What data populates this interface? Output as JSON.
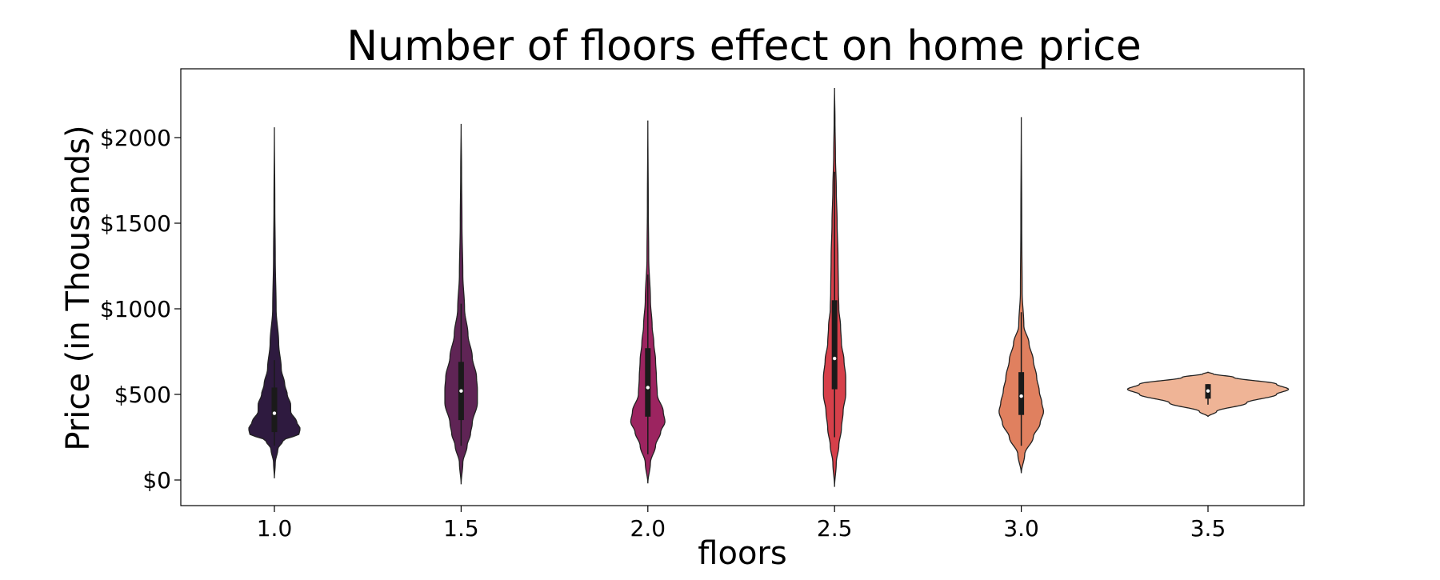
{
  "chart_data": {
    "type": "violin",
    "title": "Number of floors effect on home price",
    "xlabel": "floors",
    "ylabel": "Price (in Thousands)",
    "ylim": [
      -150,
      2400
    ],
    "y_ticks": [
      {
        "value": 0,
        "label": "$0"
      },
      {
        "value": 500,
        "label": "$500"
      },
      {
        "value": 1000,
        "label": "$1000"
      },
      {
        "value": 1500,
        "label": "$1500"
      },
      {
        "value": 2000,
        "label": "$2000"
      }
    ],
    "grid": false,
    "series": [
      {
        "category": "1.0",
        "color": "#2e1a3f",
        "whisker": [
          200,
          700
        ],
        "q1": 280,
        "median": 390,
        "q3": 540,
        "profile": [
          [
            10,
            0
          ],
          [
            100,
            1
          ],
          [
            180,
            4
          ],
          [
            230,
            10
          ],
          [
            270,
            29
          ],
          [
            300,
            30
          ],
          [
            340,
            26
          ],
          [
            400,
            19
          ],
          [
            440,
            19
          ],
          [
            500,
            15
          ],
          [
            560,
            12
          ],
          [
            650,
            8
          ],
          [
            800,
            5
          ],
          [
            1000,
            2
          ],
          [
            1300,
            1
          ],
          [
            1600,
            0.5
          ],
          [
            2060,
            0
          ]
        ]
      },
      {
        "category": "1.5",
        "color": "#5f2455",
        "whisker": [
          200,
          1030
        ],
        "q1": 350,
        "median": 520,
        "q3": 690,
        "profile": [
          [
            -25,
            0
          ],
          [
            100,
            2
          ],
          [
            200,
            7
          ],
          [
            270,
            11
          ],
          [
            330,
            13
          ],
          [
            450,
            19
          ],
          [
            530,
            19
          ],
          [
            600,
            18
          ],
          [
            720,
            13
          ],
          [
            850,
            8
          ],
          [
            1000,
            4
          ],
          [
            1200,
            2
          ],
          [
            1500,
            1
          ],
          [
            1800,
            0.5
          ],
          [
            2080,
            0
          ]
        ]
      },
      {
        "category": "2.0",
        "color": "#9c2460",
        "whisker": [
          150,
          1200
        ],
        "q1": 370,
        "median": 540,
        "q3": 770,
        "profile": [
          [
            -20,
            0
          ],
          [
            100,
            3
          ],
          [
            200,
            9
          ],
          [
            280,
            15
          ],
          [
            340,
            20
          ],
          [
            400,
            18
          ],
          [
            500,
            11
          ],
          [
            600,
            10
          ],
          [
            700,
            9
          ],
          [
            800,
            7
          ],
          [
            900,
            5
          ],
          [
            1050,
            3
          ],
          [
            1300,
            1
          ],
          [
            1600,
            0.5
          ],
          [
            2100,
            0
          ]
        ]
      },
      {
        "category": "2.5",
        "color": "#d6404a",
        "whisker": [
          250,
          1800
        ],
        "q1": 530,
        "median": 710,
        "q3": 1050,
        "profile": [
          [
            -40,
            0
          ],
          [
            100,
            2
          ],
          [
            200,
            5
          ],
          [
            300,
            8
          ],
          [
            400,
            10
          ],
          [
            500,
            13
          ],
          [
            600,
            13
          ],
          [
            700,
            11
          ],
          [
            800,
            8
          ],
          [
            900,
            7
          ],
          [
            1000,
            5
          ],
          [
            1100,
            4.5
          ],
          [
            1300,
            4
          ],
          [
            1500,
            3
          ],
          [
            1700,
            2
          ],
          [
            1900,
            1
          ],
          [
            2100,
            0.5
          ],
          [
            2290,
            0
          ]
        ]
      },
      {
        "category": "3.0",
        "color": "#e0805f",
        "whisker": [
          200,
          980
        ],
        "q1": 380,
        "median": 490,
        "q3": 630,
        "profile": [
          [
            40,
            0
          ],
          [
            150,
            4
          ],
          [
            250,
            14
          ],
          [
            330,
            22
          ],
          [
            400,
            26
          ],
          [
            450,
            24
          ],
          [
            520,
            21
          ],
          [
            600,
            18
          ],
          [
            700,
            14
          ],
          [
            800,
            9
          ],
          [
            900,
            3
          ],
          [
            1100,
            1
          ],
          [
            1500,
            0.5
          ],
          [
            2120,
            0
          ]
        ]
      },
      {
        "category": "3.5",
        "color": "#efb496",
        "whisker": [
          440,
          560
        ],
        "q1": 475,
        "median": 520,
        "q3": 560,
        "profile": [
          [
            370,
            0
          ],
          [
            400,
            10
          ],
          [
            450,
            45
          ],
          [
            500,
            80
          ],
          [
            530,
            94
          ],
          [
            560,
            80
          ],
          [
            600,
            30
          ],
          [
            620,
            6
          ],
          [
            630,
            0
          ]
        ]
      }
    ]
  }
}
